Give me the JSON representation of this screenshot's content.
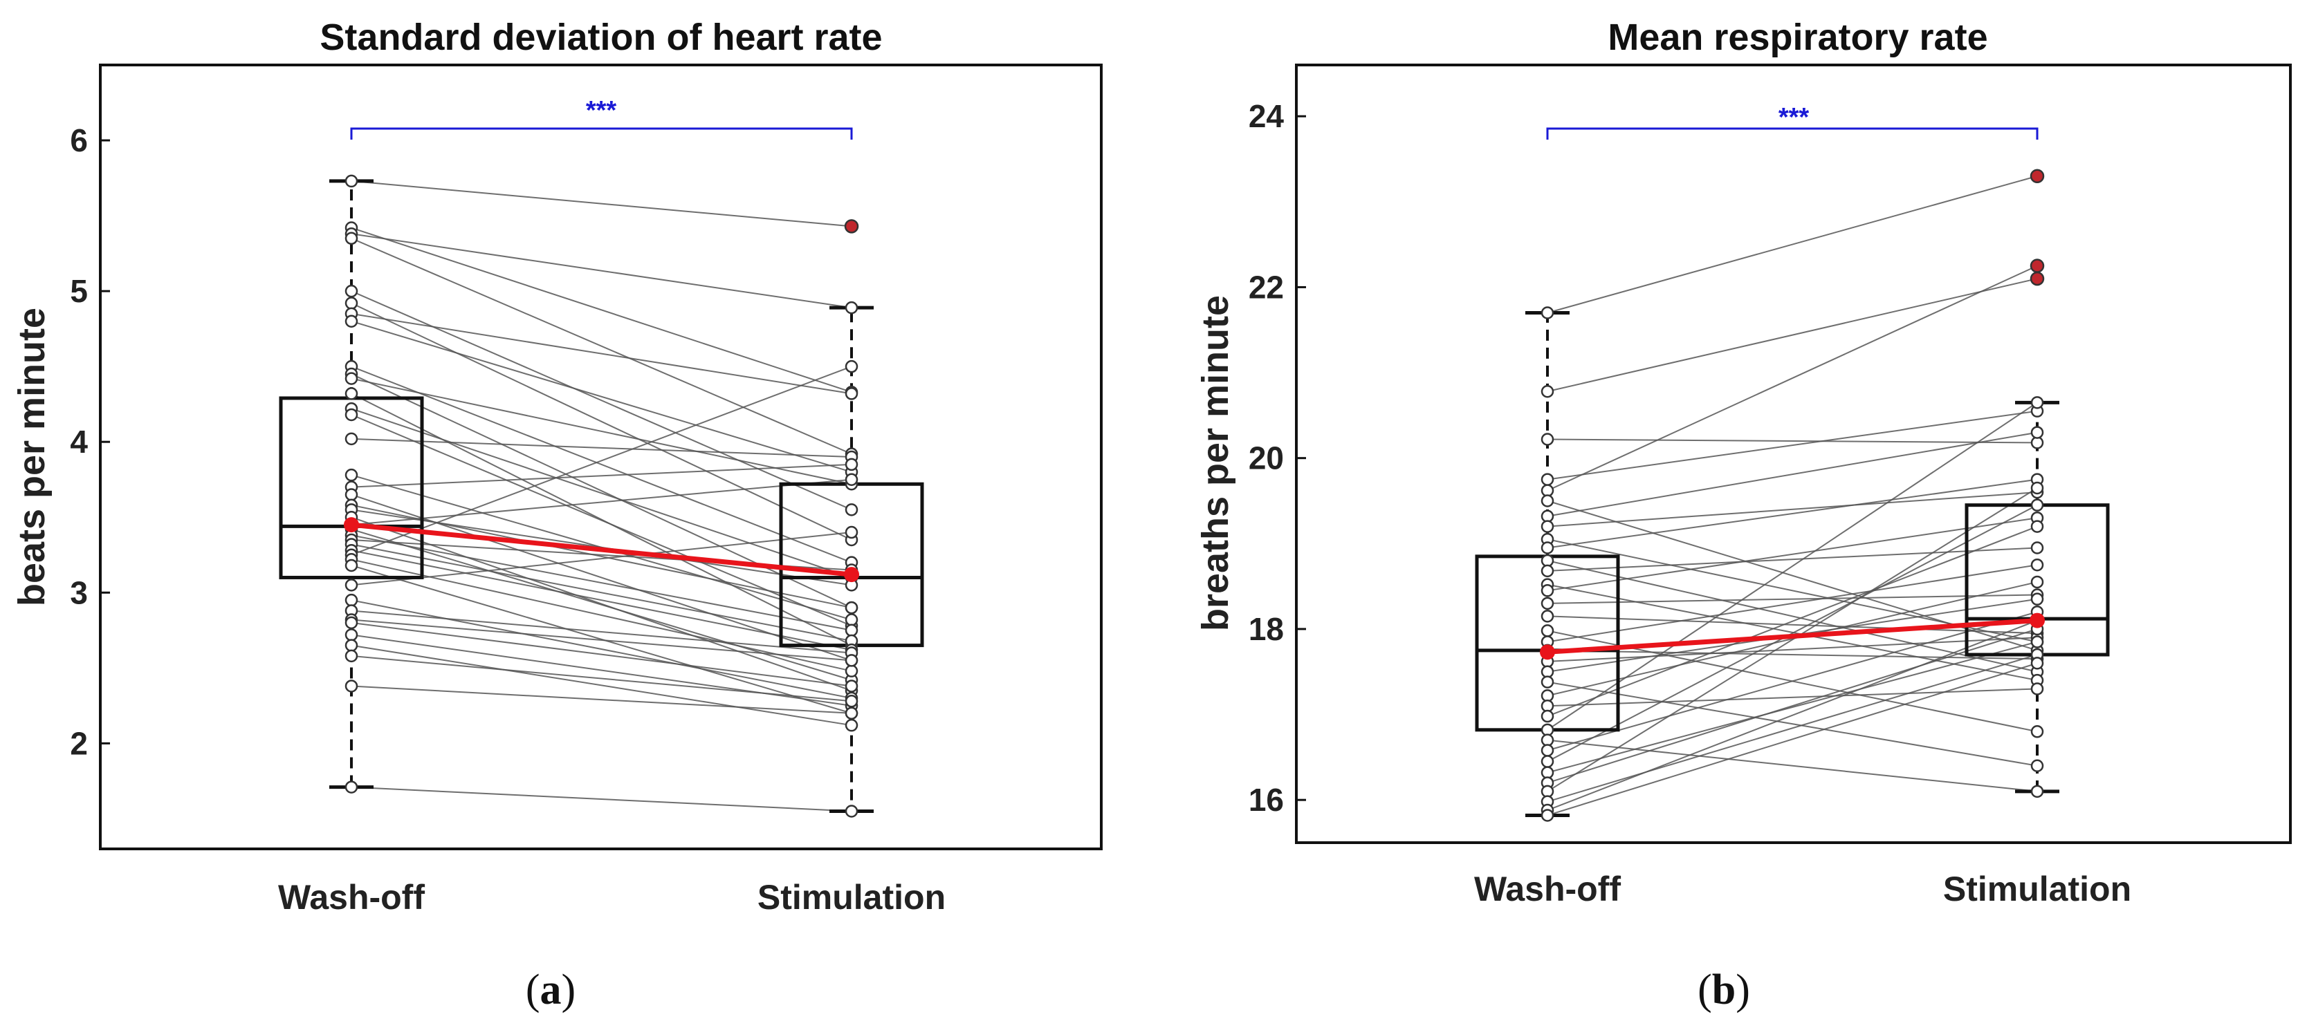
{
  "chart_data": [
    {
      "type": "box",
      "panel_label": "a",
      "title": "Standard deviation of heart rate",
      "xlabel": "",
      "ylabel": "beats per minute",
      "ylim": [
        1.3,
        6.5
      ],
      "yticks": [
        2,
        3,
        4,
        5,
        6
      ],
      "categories": [
        "Wash-off",
        "Stimulation"
      ],
      "significance": "***",
      "boxes": [
        {
          "name": "Wash-off",
          "q1": 3.1,
          "median": 3.44,
          "q3": 4.29,
          "whisker_low": 1.71,
          "whisker_high": 5.73,
          "mean": 3.45,
          "outliers": []
        },
        {
          "name": "Stimulation",
          "q1": 2.65,
          "median": 3.1,
          "q3": 3.72,
          "whisker_low": 1.55,
          "whisker_high": 4.89,
          "mean": 3.12,
          "outliers": [
            5.43
          ]
        }
      ],
      "paired": [
        [
          5.73,
          5.43
        ],
        [
          5.42,
          4.33
        ],
        [
          5.38,
          4.89
        ],
        [
          5.35,
          3.92
        ],
        [
          5.0,
          3.55
        ],
        [
          4.92,
          3.35
        ],
        [
          4.85,
          4.32
        ],
        [
          4.8,
          3.8
        ],
        [
          4.5,
          3.2
        ],
        [
          4.45,
          2.9
        ],
        [
          4.42,
          3.72
        ],
        [
          4.32,
          2.65
        ],
        [
          4.22,
          3.1
        ],
        [
          4.18,
          2.78
        ],
        [
          4.02,
          3.9
        ],
        [
          3.78,
          2.82
        ],
        [
          3.7,
          3.85
        ],
        [
          3.65,
          2.55
        ],
        [
          3.58,
          2.9
        ],
        [
          3.55,
          3.05
        ],
        [
          3.5,
          2.35
        ],
        [
          3.45,
          3.75
        ],
        [
          3.42,
          2.42
        ],
        [
          3.38,
          2.75
        ],
        [
          3.35,
          3.15
        ],
        [
          3.32,
          2.68
        ],
        [
          3.28,
          2.62
        ],
        [
          3.25,
          4.5
        ],
        [
          3.22,
          2.48
        ],
        [
          3.18,
          2.2
        ],
        [
          3.05,
          3.4
        ],
        [
          2.95,
          2.3
        ],
        [
          2.88,
          2.6
        ],
        [
          2.82,
          2.55
        ],
        [
          2.8,
          2.38
        ],
        [
          2.72,
          2.25
        ],
        [
          2.65,
          2.12
        ],
        [
          2.58,
          2.28
        ],
        [
          2.38,
          2.2
        ],
        [
          1.71,
          1.55
        ]
      ]
    },
    {
      "type": "box",
      "panel_label": "b",
      "title": "Mean respiratory rate",
      "xlabel": "",
      "ylabel": "breaths per minute",
      "ylim": [
        15.5,
        24.6
      ],
      "yticks": [
        16,
        18,
        20,
        22,
        24
      ],
      "categories": [
        "Wash-off",
        "Stimulation"
      ],
      "significance": "***",
      "boxes": [
        {
          "name": "Wash-off",
          "q1": 16.82,
          "median": 17.75,
          "q3": 18.85,
          "whisker_low": 15.82,
          "whisker_high": 21.7,
          "mean": 17.73,
          "outliers": []
        },
        {
          "name": "Stimulation",
          "q1": 17.7,
          "median": 18.12,
          "q3": 19.45,
          "whisker_low": 16.1,
          "whisker_high": 20.65,
          "mean": 18.1,
          "outliers": [
            23.3,
            22.25,
            22.1
          ]
        }
      ],
      "paired": [
        [
          21.7,
          23.3
        ],
        [
          20.78,
          22.1
        ],
        [
          20.22,
          20.18
        ],
        [
          19.75,
          20.55
        ],
        [
          19.62,
          22.25
        ],
        [
          19.5,
          17.75
        ],
        [
          19.32,
          20.3
        ],
        [
          19.2,
          19.6
        ],
        [
          19.05,
          17.85
        ],
        [
          18.95,
          19.75
        ],
        [
          18.8,
          17.5
        ],
        [
          18.68,
          18.95
        ],
        [
          18.52,
          17.4
        ],
        [
          18.45,
          19.3
        ],
        [
          18.3,
          18.4
        ],
        [
          18.15,
          17.95
        ],
        [
          17.98,
          16.8
        ],
        [
          17.85,
          18.75
        ],
        [
          17.75,
          17.65
        ],
        [
          17.62,
          17.9
        ],
        [
          17.5,
          18.35
        ],
        [
          17.38,
          16.4
        ],
        [
          17.22,
          18.55
        ],
        [
          17.1,
          17.3
        ],
        [
          16.98,
          19.2
        ],
        [
          16.82,
          20.65
        ],
        [
          16.7,
          16.1
        ],
        [
          16.58,
          18.2
        ],
        [
          16.45,
          19.45
        ],
        [
          16.32,
          17.85
        ],
        [
          16.2,
          18.0
        ],
        [
          16.1,
          19.65
        ],
        [
          15.98,
          17.7
        ],
        [
          15.88,
          18.1
        ],
        [
          15.82,
          17.6
        ]
      ]
    }
  ],
  "captions": [
    {
      "letter": "a",
      "text": "(a)"
    },
    {
      "letter": "b",
      "text": "(b)"
    }
  ],
  "colors": {
    "axis": "#111111",
    "pair_line": "#555555",
    "mean_line": "#e8141b",
    "marker_edge": "#333333",
    "outlier_fill": "#c0272d",
    "significance": "#1a1ad6"
  }
}
